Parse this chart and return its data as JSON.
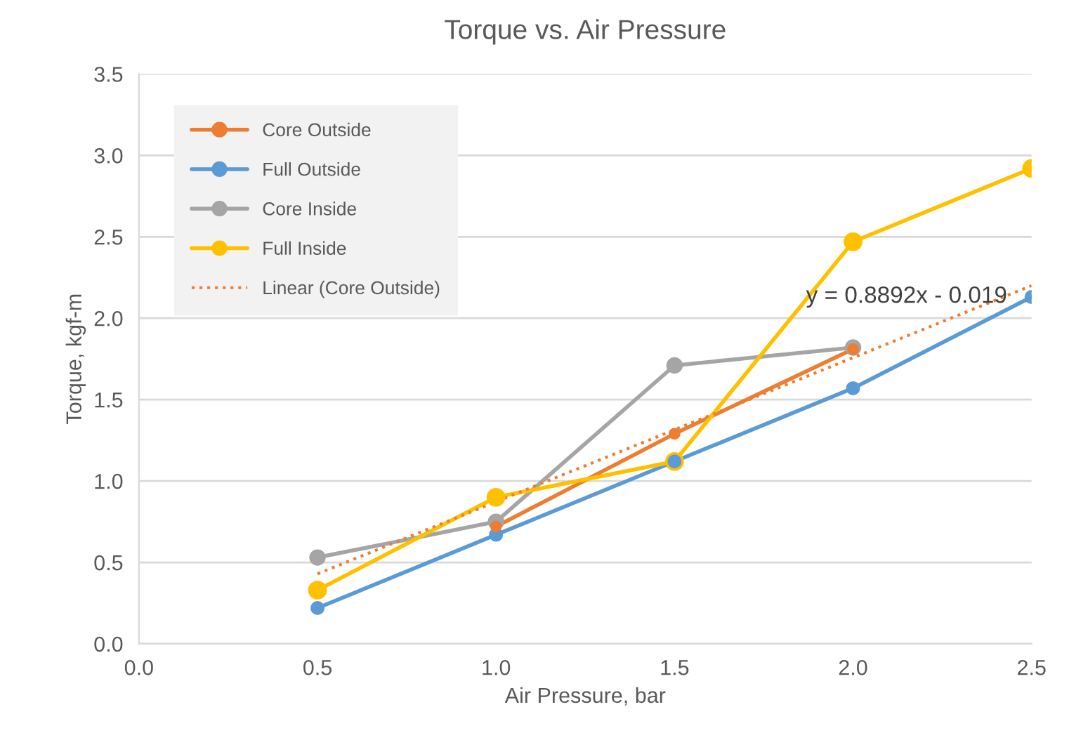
{
  "chart_data": {
    "type": "line",
    "title": "Torque vs. Air Pressure",
    "xlabel": "Air Pressure, bar",
    "ylabel": "Torque, kgf-m",
    "x": [
      0.5,
      1.0,
      1.5,
      2.0,
      2.5
    ],
    "series": [
      {
        "name": "Core Outside",
        "color": "#ed7d31",
        "values": [
          null,
          0.72,
          1.29,
          1.81,
          null
        ]
      },
      {
        "name": "Full Outside",
        "color": "#5b9bd5",
        "values": [
          0.22,
          0.67,
          1.12,
          1.57,
          2.13
        ]
      },
      {
        "name": "Core Inside",
        "color": "#a5a5a5",
        "values": [
          0.53,
          0.75,
          1.71,
          1.82,
          null
        ]
      },
      {
        "name": "Full Inside",
        "color": "#ffc000",
        "values": [
          0.33,
          0.9,
          1.12,
          2.47,
          2.92
        ]
      },
      {
        "name": "Linear (Core Outside)",
        "color": "#ed7d31",
        "x": [
          0.5,
          2.5
        ],
        "values": [
          0.43,
          2.2
        ],
        "line_style": "dotted",
        "marker": "none"
      }
    ],
    "annotations": [
      "y = 0.8892x - 0.019"
    ],
    "xlim": [
      0.0,
      2.5
    ],
    "xticks": [
      {
        "value": 0.0,
        "label": "0.0"
      },
      {
        "value": 0.5,
        "label": "0.5"
      },
      {
        "value": 1.0,
        "label": "1.0"
      },
      {
        "value": 1.5,
        "label": "1.5"
      },
      {
        "value": 2.0,
        "label": "2.0"
      },
      {
        "value": 2.5,
        "label": "2.5"
      }
    ],
    "ylim": [
      0.0,
      3.5
    ],
    "yticks": [
      {
        "value": 0.0,
        "label": "0.0"
      },
      {
        "value": 0.5,
        "label": "0.5"
      },
      {
        "value": 1.0,
        "label": "1.0"
      },
      {
        "value": 1.5,
        "label": "1.5"
      },
      {
        "value": 2.0,
        "label": "2.0"
      },
      {
        "value": 2.5,
        "label": "2.5"
      },
      {
        "value": 3.0,
        "label": "3.0"
      },
      {
        "value": 3.5,
        "label": "3.5"
      }
    ],
    "grid": "y",
    "legend": "top left",
    "marker": "circle",
    "line_style": "solid"
  }
}
